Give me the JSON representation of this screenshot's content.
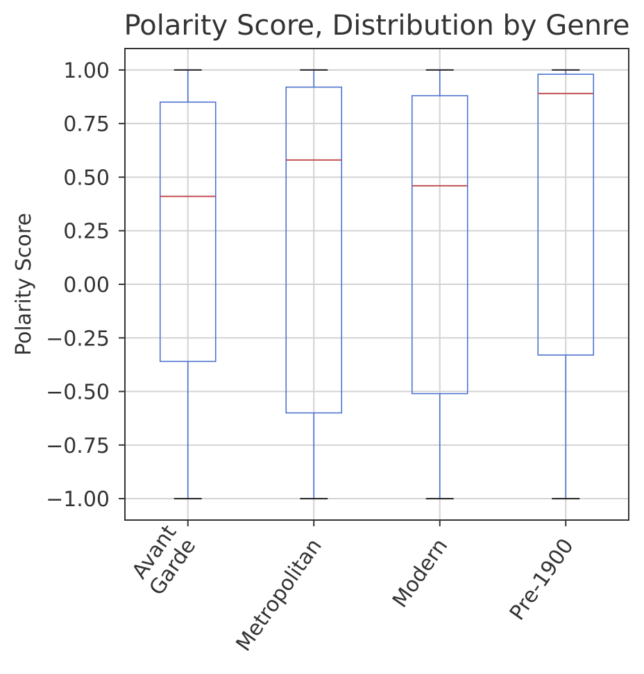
{
  "chart_data": {
    "type": "box",
    "title": "Polarity Score, Distribution by Genre",
    "xlabel": "",
    "ylabel": "Polarity Score",
    "ylim": [
      -1.1,
      1.1
    ],
    "y_ticks": [
      "1.00",
      "0.75",
      "0.50",
      "0.25",
      "0.00",
      "−0.25",
      "−0.50",
      "−0.75",
      "−1.00"
    ],
    "y_tick_values": [
      1.0,
      0.75,
      0.5,
      0.25,
      0.0,
      -0.25,
      -0.5,
      -0.75,
      -1.0
    ],
    "grid": true,
    "legend": "none",
    "categories": [
      {
        "label_lines": [
          "Avant",
          "Garde"
        ],
        "whisker_low": -1.0,
        "q1": -0.36,
        "median": 0.41,
        "q3": 0.85,
        "whisker_high": 1.0
      },
      {
        "label_lines": [
          "Metropolitan"
        ],
        "whisker_low": -1.0,
        "q1": -0.6,
        "median": 0.58,
        "q3": 0.92,
        "whisker_high": 1.0
      },
      {
        "label_lines": [
          "Modern"
        ],
        "whisker_low": -1.0,
        "q1": -0.51,
        "median": 0.46,
        "q3": 0.88,
        "whisker_high": 1.0
      },
      {
        "label_lines": [
          "Pre-1900"
        ],
        "whisker_low": -1.0,
        "q1": -0.33,
        "median": 0.89,
        "q3": 0.98,
        "whisker_high": 1.0
      }
    ],
    "colors": {
      "box": "#4c72cf",
      "median": "#c44e52",
      "grid": "#d3d3d3",
      "axes": "#333333"
    }
  }
}
